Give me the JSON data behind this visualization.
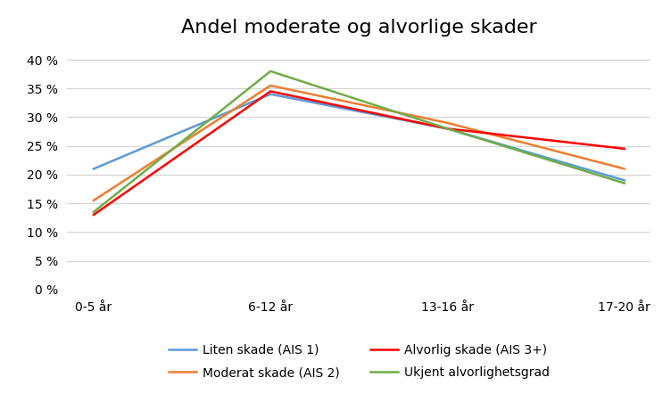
{
  "title": "Andel moderate og alvorlige skader",
  "categories": [
    "0-5 år",
    "6-12 år",
    "13-16 år",
    "17-20 år"
  ],
  "series": [
    {
      "label": "Liten skade (AIS 1)",
      "color": "#5b9bd5",
      "values": [
        0.21,
        0.34,
        0.28,
        0.19
      ]
    },
    {
      "label": "Moderat skade (AIS 2)",
      "color": "#ed7d31",
      "values": [
        0.155,
        0.355,
        0.29,
        0.21
      ]
    },
    {
      "label": "Alvorlig skade (AIS 3+)",
      "color": "#ff0000",
      "values": [
        0.13,
        0.345,
        0.28,
        0.245
      ]
    },
    {
      "label": "Ukjent alvorlighetsgrad",
      "color": "#70ad47",
      "values": [
        0.135,
        0.38,
        0.28,
        0.185
      ]
    }
  ],
  "ylim": [
    0,
    0.42
  ],
  "yticks": [
    0.0,
    0.05,
    0.1,
    0.15,
    0.2,
    0.25,
    0.3,
    0.35,
    0.4
  ],
  "title_fontsize": 16,
  "tick_fontsize": 10,
  "legend_fontsize": 10,
  "background_color": "#ffffff",
  "grid_color": "#d3d3d3"
}
